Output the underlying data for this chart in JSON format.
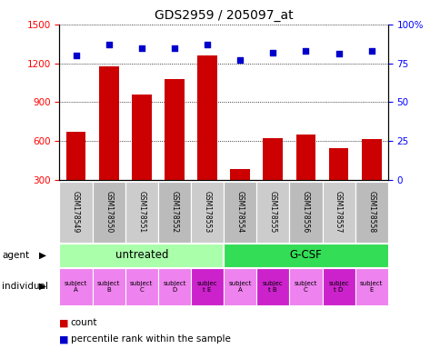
{
  "title": "GDS2959 / 205097_at",
  "samples": [
    "GSM178549",
    "GSM178550",
    "GSM178551",
    "GSM178552",
    "GSM178553",
    "GSM178554",
    "GSM178555",
    "GSM178556",
    "GSM178557",
    "GSM178558"
  ],
  "counts": [
    670,
    1175,
    960,
    1080,
    1260,
    385,
    620,
    650,
    545,
    615
  ],
  "percentile_ranks": [
    80,
    87,
    85,
    85,
    87,
    77,
    82,
    83,
    81,
    83
  ],
  "ylim_left": [
    300,
    1500
  ],
  "yticks_left": [
    300,
    600,
    900,
    1200,
    1500
  ],
  "ylim_right": [
    0,
    100
  ],
  "yticks_right": [
    0,
    25,
    50,
    75,
    100
  ],
  "agent_colors": [
    "#aaffaa",
    "#33dd55"
  ],
  "individual_color_normal": "#ee82ee",
  "individual_color_highlight": "#cc22cc",
  "individual_highlight": [
    4,
    6,
    8
  ],
  "bar_color": "#cc0000",
  "dot_color": "#0000cc",
  "bar_width": 0.6,
  "legend_count_color": "#cc0000",
  "legend_rank_color": "#0000cc",
  "sample_bg_color": "#cccccc",
  "sample_bg_color2": "#bbbbbb"
}
